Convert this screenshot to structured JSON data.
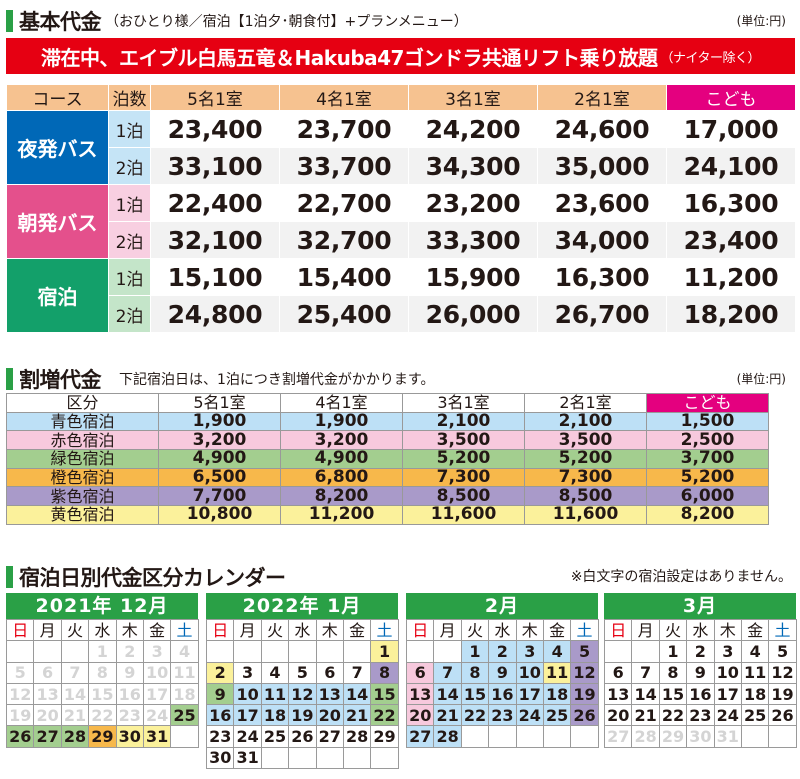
{
  "section1": {
    "title": "基本代金",
    "subtitle": "（おひとり様／宿泊【1泊夕･朝食付】+プランメニュー）",
    "unit": "(単位:円)"
  },
  "banner": {
    "main": "滞在中、エイブル白馬五竜＆Hakuba47ゴンドラ共通リフト乗り放題",
    "small": "（ナイター除く）"
  },
  "basic_table": {
    "headers": [
      "コース",
      "泊数",
      "5名1室",
      "4名1室",
      "3名1室",
      "2名1室",
      "こども"
    ],
    "groups": [
      {
        "course": "夜発バス",
        "rows": [
          {
            "nights": "1泊",
            "prices": [
              "23,400",
              "23,700",
              "24,200",
              "24,600",
              "17,000"
            ]
          },
          {
            "nights": "2泊",
            "prices": [
              "33,100",
              "33,700",
              "34,300",
              "35,000",
              "24,100"
            ]
          }
        ]
      },
      {
        "course": "朝発バス",
        "rows": [
          {
            "nights": "1泊",
            "prices": [
              "22,400",
              "22,700",
              "23,200",
              "23,600",
              "16,300"
            ]
          },
          {
            "nights": "2泊",
            "prices": [
              "32,100",
              "32,700",
              "33,300",
              "34,000",
              "23,400"
            ]
          }
        ]
      },
      {
        "course": "宿泊",
        "rows": [
          {
            "nights": "1泊",
            "prices": [
              "15,100",
              "15,400",
              "15,900",
              "16,300",
              "11,200"
            ]
          },
          {
            "nights": "2泊",
            "prices": [
              "24,800",
              "25,400",
              "26,000",
              "26,700",
              "18,200"
            ]
          }
        ]
      }
    ]
  },
  "section2": {
    "title": "割増代金",
    "subtitle": "下記宿泊日は、1泊につき割増代金がかかります。",
    "unit": "(単位:円)"
  },
  "surcharge_table": {
    "headers": [
      "区分",
      "5名1室",
      "4名1室",
      "3名1室",
      "2名1室",
      "こども"
    ],
    "rows": [
      {
        "label": "青色宿泊",
        "color": "#bde0f6",
        "values": [
          "1,900",
          "1,900",
          "2,100",
          "2,100",
          "1,500"
        ]
      },
      {
        "label": "赤色宿泊",
        "color": "#f7c9dd",
        "values": [
          "3,200",
          "3,200",
          "3,500",
          "3,500",
          "2,500"
        ]
      },
      {
        "label": "緑色宿泊",
        "color": "#a3ce8f",
        "values": [
          "4,900",
          "4,900",
          "5,200",
          "5,200",
          "3,700"
        ]
      },
      {
        "label": "橙色宿泊",
        "color": "#f7b84b",
        "values": [
          "6,500",
          "6,800",
          "7,300",
          "7,300",
          "5,200"
        ]
      },
      {
        "label": "紫色宿泊",
        "color": "#a99ac9",
        "values": [
          "7,700",
          "8,200",
          "8,500",
          "8,500",
          "6,000"
        ]
      },
      {
        "label": "黄色宿泊",
        "color": "#fbf19b",
        "values": [
          "10,800",
          "11,200",
          "11,600",
          "11,600",
          "8,200"
        ]
      }
    ]
  },
  "section3": {
    "title": "宿泊日別代金区分カレンダー",
    "note": "※白文字の宿泊設定はありません。"
  },
  "weekdays": [
    "日",
    "月",
    "火",
    "水",
    "木",
    "金",
    "土"
  ],
  "calendars": [
    {
      "title": "2021年 12月",
      "header_color": "#2aa046",
      "weeks": [
        [
          [
            "",
            ""
          ],
          [
            "",
            ""
          ],
          [
            "",
            ""
          ],
          [
            "1",
            "g"
          ],
          [
            "2",
            "g"
          ],
          [
            "3",
            "g"
          ],
          [
            "4",
            "g"
          ]
        ],
        [
          [
            "5",
            "g"
          ],
          [
            "6",
            "g"
          ],
          [
            "7",
            "g"
          ],
          [
            "8",
            "g"
          ],
          [
            "9",
            "g"
          ],
          [
            "10",
            "g"
          ],
          [
            "11",
            "g"
          ]
        ],
        [
          [
            "12",
            "g"
          ],
          [
            "13",
            "g"
          ],
          [
            "14",
            "g"
          ],
          [
            "15",
            "g"
          ],
          [
            "16",
            "g"
          ],
          [
            "17",
            "g"
          ],
          [
            "18",
            "g"
          ]
        ],
        [
          [
            "19",
            "g"
          ],
          [
            "20",
            "g"
          ],
          [
            "21",
            "g"
          ],
          [
            "22",
            "g"
          ],
          [
            "23",
            "g"
          ],
          [
            "24",
            "g"
          ],
          [
            "25",
            "green"
          ]
        ],
        [
          [
            "26",
            "green"
          ],
          [
            "27",
            "green"
          ],
          [
            "28",
            "green"
          ],
          [
            "29",
            "orange"
          ],
          [
            "30",
            "yellow"
          ],
          [
            "31",
            "yellow"
          ],
          [
            "",
            ""
          ]
        ]
      ]
    },
    {
      "title": "2022年 1月",
      "header_color": "#2aa046",
      "weeks": [
        [
          [
            "",
            ""
          ],
          [
            "",
            ""
          ],
          [
            "",
            ""
          ],
          [
            "",
            ""
          ],
          [
            "",
            ""
          ],
          [
            "",
            ""
          ],
          [
            "1",
            "yellow"
          ]
        ],
        [
          [
            "2",
            "yellow"
          ],
          [
            "3",
            "white"
          ],
          [
            "4",
            "white"
          ],
          [
            "5",
            "white"
          ],
          [
            "6",
            "white"
          ],
          [
            "7",
            "white"
          ],
          [
            "8",
            "purple"
          ]
        ],
        [
          [
            "9",
            "green"
          ],
          [
            "10",
            "blue"
          ],
          [
            "11",
            "blue"
          ],
          [
            "12",
            "blue"
          ],
          [
            "13",
            "blue"
          ],
          [
            "14",
            "blue"
          ],
          [
            "15",
            "green"
          ]
        ],
        [
          [
            "16",
            "blue"
          ],
          [
            "17",
            "blue"
          ],
          [
            "18",
            "blue"
          ],
          [
            "19",
            "blue"
          ],
          [
            "20",
            "blue"
          ],
          [
            "21",
            "blue"
          ],
          [
            "22",
            "green"
          ]
        ],
        [
          [
            "23",
            "white"
          ],
          [
            "24",
            "white"
          ],
          [
            "25",
            "white"
          ],
          [
            "26",
            "white"
          ],
          [
            "27",
            "white"
          ],
          [
            "28",
            "white"
          ],
          [
            "29",
            "white"
          ]
        ],
        [
          [
            "30",
            "white"
          ],
          [
            "31",
            "white"
          ],
          [
            "",
            ""
          ],
          [
            "",
            ""
          ],
          [
            "",
            ""
          ],
          [
            "",
            ""
          ],
          [
            "",
            ""
          ]
        ]
      ]
    },
    {
      "title": "2月",
      "header_color": "#2aa046",
      "weeks": [
        [
          [
            "",
            ""
          ],
          [
            "",
            ""
          ],
          [
            "1",
            "blue"
          ],
          [
            "2",
            "blue"
          ],
          [
            "3",
            "blue"
          ],
          [
            "4",
            "blue"
          ],
          [
            "5",
            "purple"
          ]
        ],
        [
          [
            "6",
            "pink"
          ],
          [
            "7",
            "blue"
          ],
          [
            "8",
            "blue"
          ],
          [
            "9",
            "blue"
          ],
          [
            "10",
            "blue"
          ],
          [
            "11",
            "yellow"
          ],
          [
            "12",
            "purple"
          ]
        ],
        [
          [
            "13",
            "pink"
          ],
          [
            "14",
            "blue"
          ],
          [
            "15",
            "blue"
          ],
          [
            "16",
            "blue"
          ],
          [
            "17",
            "blue"
          ],
          [
            "18",
            "blue"
          ],
          [
            "19",
            "purple"
          ]
        ],
        [
          [
            "20",
            "pink"
          ],
          [
            "21",
            "blue"
          ],
          [
            "22",
            "blue"
          ],
          [
            "23",
            "blue"
          ],
          [
            "24",
            "blue"
          ],
          [
            "25",
            "blue"
          ],
          [
            "26",
            "purple"
          ]
        ],
        [
          [
            "27",
            "blue"
          ],
          [
            "28",
            "blue"
          ],
          [
            "",
            ""
          ],
          [
            "",
            ""
          ],
          [
            "",
            ""
          ],
          [
            "",
            ""
          ],
          [
            "",
            ""
          ]
        ]
      ]
    },
    {
      "title": "3月",
      "header_color": "#2aa046",
      "weeks": [
        [
          [
            "",
            ""
          ],
          [
            "",
            ""
          ],
          [
            "1",
            "white"
          ],
          [
            "2",
            "white"
          ],
          [
            "3",
            "white"
          ],
          [
            "4",
            "white"
          ],
          [
            "5",
            "white"
          ]
        ],
        [
          [
            "6",
            "white"
          ],
          [
            "7",
            "white"
          ],
          [
            "8",
            "white"
          ],
          [
            "9",
            "white"
          ],
          [
            "10",
            "white"
          ],
          [
            "11",
            "white"
          ],
          [
            "12",
            "white"
          ]
        ],
        [
          [
            "13",
            "white"
          ],
          [
            "14",
            "white"
          ],
          [
            "15",
            "white"
          ],
          [
            "16",
            "white"
          ],
          [
            "17",
            "white"
          ],
          [
            "18",
            "white"
          ],
          [
            "19",
            "white"
          ]
        ],
        [
          [
            "20",
            "white"
          ],
          [
            "21",
            "white"
          ],
          [
            "22",
            "white"
          ],
          [
            "23",
            "white"
          ],
          [
            "24",
            "white"
          ],
          [
            "25",
            "white"
          ],
          [
            "26",
            "white"
          ]
        ],
        [
          [
            "27",
            "g"
          ],
          [
            "28",
            "g"
          ],
          [
            "29",
            "g"
          ],
          [
            "30",
            "g"
          ],
          [
            "31",
            "g"
          ],
          [
            "",
            ""
          ],
          [
            "",
            ""
          ]
        ]
      ]
    }
  ]
}
